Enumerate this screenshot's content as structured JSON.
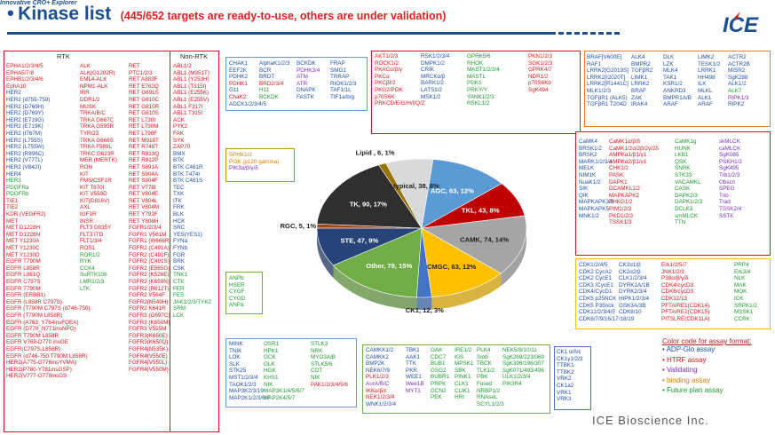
{
  "header": {
    "bullet": "•",
    "title": "Kinase list",
    "subtitle": "(445/652 targets are ready-to-use, others are under validation)"
  },
  "logo": {
    "letters": "ICE",
    "tagline": "Innovative CRO+ Explorer"
  },
  "footer": {
    "company": "ICE Bioscience Inc."
  },
  "legend": {
    "title": "Color code for assay format:",
    "items": [
      {
        "label": "ADP-Glo assay",
        "color": "#1f4fa8"
      },
      {
        "label": "HTRF assay",
        "color": "#e3141b"
      },
      {
        "label": "Validating",
        "color": "#7b2cbf"
      },
      {
        "label": "binding assay",
        "color": "#d17a00"
      },
      {
        "label": "Future plan assay",
        "color": "#199b2a"
      }
    ]
  },
  "colors": {
    "adp": "#1f4fa8",
    "htrf": "#e3141b",
    "validating": "#7b2cbf",
    "binding": "#d17a00",
    "future": "#199b2a",
    "brand": "#1b4f8f"
  },
  "rtk": {
    "header": "RTK",
    "col1": [
      "EPHA1/2/3/4/5",
      "EPHA5/7/8",
      "EPHB1/2/3/4/6",
      "EphA10",
      "HER2",
      "HER2 (d755-759)",
      "HER2 (D769H)",
      "HER2 (D769Y)",
      "HER2 (E719G)",
      "HER2 (E719K)",
      "HER2 (I767M)",
      "HER2 (L755S)",
      "HER2 (L755W)",
      "HER2 (R896C)",
      "HER2 (V777L)",
      "HER2 (V842I)",
      "HER4",
      "HER3",
      "PDGFRa",
      "PDGFRb",
      "TIE1",
      "TIE2",
      "KDR (VEGFR2)",
      "MET",
      "MET D1228H",
      "MET D1228N",
      "MET Y1230A",
      "MET Y1230C",
      "MET Y1230D",
      "EGFR T790M",
      "EGFR L858R",
      "EGFR L861Q",
      "EGFR C797S",
      "EGFR T790M",
      "EGFR (ERBB1)",
      "EGFR (L858R C797S)",
      "EGFR (T790M C797S (d746-750)",
      "EGFR (T790M L858R)",
      "EGFR (A763_Y764insFQEA)",
      "EGFR (D770_N771insNPG)",
      "EGFR T790M L858R",
      "EGFR V769-D770 insGE",
      "EGFR(C797S,L858R)",
      "EGFR (d746-750 T790M L858R)",
      "HER2(A775-G776insYVMA)",
      "HER2(P780-Y781insGSP)",
      "HER2(V777-G778insGS"
    ],
    "col2": [
      "ALK",
      "ALK(G1202R)",
      "EML4-ALK",
      "NPM1-ALK",
      "IRR",
      "DDR1/2",
      "MUSK",
      "TRKA/B/C",
      "TRKA G667C",
      "TRKA G595R",
      "TYRO3",
      "TRKA G666S",
      "TRKA F589L",
      "TRKC G623R",
      "MER (MERTK)",
      "RON",
      "KIT",
      "FMS/CSF1R",
      "KIT T670I",
      "KIT V559D",
      "KIT(D816V)",
      "AXL",
      "IGF1R",
      "INSR",
      "FLT3 D835Y",
      "FLT3 ITD",
      "FLT1/3/4",
      "ROS1",
      "ROR1/2",
      "RYK",
      "CCK4",
      "SuRTK106",
      "LMR1/2/3",
      "LTK"
    ],
    "col3": [
      "RET",
      "PTC1/2/3",
      "RET A883F",
      "RET E762Q",
      "RET G691S",
      "RET G810C",
      "RET G810R",
      "RET G810S",
      "RET L730I",
      "RET L790M",
      "RET L790F",
      "RET M918T",
      "RET R749T",
      "RET R813Q",
      "RET R912P",
      "RET S891A",
      "RET S904A",
      "RET S904F",
      "RET V778I",
      "RET V804E",
      "RET V804L",
      "RET V804M",
      "RET Y791F",
      "RET Y806H",
      "FGFR1/2/3/4",
      "FGFR1 V561M",
      "FGFR1 (W666R)",
      "FGFR2 (C491A)",
      "FGFR2 (C491F)",
      "FGFR2 (C491S)",
      "FGFR2 (E565G)",
      "FGFR2 (K526E)",
      "FGFR2 (K659N)",
      "FGFR2 (R612T)",
      "FGFR2 V564F",
      "FGFR2(N549H)",
      "FGFR2 K641R",
      "FGFR3 (G697C)",
      "FGFR3 (K650M)",
      "FGFR3 V555M",
      "FGFR3(K650E)",
      "FGFR3(K650Q)",
      "FGFR4(N535K)",
      "FGFR4(V550E)",
      "FGFR4(V550L)",
      "FGFR4(V550M)"
    ]
  },
  "nonrtk": {
    "header": "Non-RTK",
    "col1": [
      "ABL1/2",
      "ABL1 (M351T)",
      "ABL1 (Y253H)",
      "ABL1 (T315I)",
      "ABL1 (E255K)",
      "ABL1 (E255V)",
      "ABL1 F317I",
      "ABL1 T315I",
      "ACK",
      "PYK2",
      "FAK",
      "SYK",
      "ZAP70",
      "BMX",
      "BTK",
      "BTK C481R",
      "BTK T474I",
      "BTK C481S",
      "TEC",
      "TXK",
      "ITK",
      "FRK",
      "BLK",
      "HCK",
      "SRC",
      "YES(YES1)",
      "FYNa",
      "FYNb",
      "FGR",
      "BRK",
      "CSK",
      "TNK1",
      "CTK",
      "FER",
      "FES",
      "JAK1/2/3/TYK2",
      "SRM",
      "LCK"
    ]
  },
  "top_blue_box": {
    "col1": [
      "CHAK1",
      "EEF2K",
      "PDHK2",
      "PDHK1",
      "G11",
      "ChaK2",
      "ADCK1/2/3/4/5"
    ],
    "col2": [
      "AlphaK1/2/3",
      "BCR",
      "BRDT",
      "BRD2/3/4",
      "H11",
      "BCKDK",
      ""
    ],
    "col3": [
      "BCKDK",
      "PDHK3/4",
      "ATM",
      "ATR",
      "DNAPK",
      "FASTK",
      ""
    ],
    "col4": [
      "FRAP",
      "SMG1",
      "TRRAP",
      "RIOK1/2/3",
      "TAF1/1L",
      "TIF1a/b/g",
      ""
    ]
  },
  "atypical_box": {
    "col1": [
      "AKT1/2/3",
      "ROCK1/2",
      "PKACα/β/γ",
      "PKCα",
      "PKCβI/2",
      "PKG2/PGK",
      "p70S6K",
      "PRKCD/E/G/H/I/Q/Z"
    ],
    "col2": [
      "RSK1/2/3/4",
      "DMPK1/2",
      "CRIK",
      "MRCKα/β",
      "BARK1/2",
      "LATS1/2",
      "MSK1/2",
      ""
    ],
    "col3": [
      "GPRK5/6",
      "RHOK",
      "MAST1/2/3/4",
      "MASTL",
      "PDK1",
      "PRKY/Y",
      "YANK1/2/3",
      "RSKL1/2"
    ],
    "col4": [
      "PKN1/2/3",
      "SGK1/2/3",
      "GPRK4/7",
      "NDR1/2",
      "p70S6Kb",
      "SgK494",
      "",
      ""
    ]
  },
  "tkl_box": {
    "col1": [
      "BRAF[V600E]",
      "RAF1",
      "LRRK2[G2019S]",
      "LRRK2[I2020T]",
      "LRRK2[R1441C]",
      "MLK1/2/3",
      "TGFβR1 (ALK5)",
      "TGFβR1 T204D"
    ],
    "col2": [
      "ALK4",
      "BMPR2",
      "TGFβR2",
      "LIMK1",
      "LRRK2",
      "BRAF",
      "ZAK",
      "IRAK4"
    ],
    "col3": [
      "DLK",
      "LZK",
      "MLK4",
      "TAK1",
      "KSR1/2",
      "ANKRD3",
      "BMPR1A/B",
      "ARAF"
    ],
    "col4": [
      "LIMK2",
      "TESK1/2",
      "LRRK1",
      "HH498",
      "ILK",
      "MLKL",
      "ALK1",
      "ARAF"
    ],
    "col5": [
      "ACTR2",
      "ACTR2B",
      "MISR2",
      "SgK288",
      "ALK1/2",
      "ALK7",
      "RIPK1/3",
      "RIPK2"
    ]
  },
  "lipid_box": {
    "items": [
      "SPHK1/2",
      "PI3K (p120 gamma)",
      "PIK3α/β/γ/δ"
    ]
  },
  "camk_box": {
    "col1": [
      "CaMK4",
      "BRSK1/2",
      "BRSK2",
      "MARK1/2/3/4",
      "MELK",
      "NIM1K",
      "NuaK1/2",
      "SIK",
      "QIK",
      "MAPKAPK3/5",
      "MAPKAPK5",
      "MNK1/2"
    ],
    "col2": [
      "CaMK1α/β/δ",
      "CaMK1/2α/2β/2γ/2δ",
      "AMPKα1/β1/γ1",
      "AMPKα2/β1/γ1",
      "CHK1/2",
      "PASK",
      "DAPK1",
      "DCAMKL1/2",
      "MAPKAPK2",
      "PHKG1/2",
      "PIM1/2/3",
      "PKD1/2/3",
      "TSSK1/3"
    ],
    "col3": [
      "CaMK1g",
      "HUNK",
      "LKB1",
      "QSK",
      "SNRK",
      "STK33",
      "VACAMKL",
      "CASK",
      "DAPK2/3",
      "DAPK1/2/3",
      "DCLK3",
      "smMLCK",
      "TTN"
    ],
    "col4": [
      "skMLCK",
      "caMLCK",
      "SgK085",
      "PSKH1/2",
      "SgK495",
      "Trb1/2/3",
      "Obscn",
      "SPEG",
      "Trio",
      "Trad",
      "TSSK2/4",
      "SSTK"
    ]
  },
  "cmgc_box": {
    "col1": [
      "CDK1/2/4/5",
      "CDK2 CycA2",
      "CDK2 CycE1",
      "CDK3 /CycE1",
      "CDK4/CycD1",
      "CDK5 p25NCK",
      "CDK5 P35nck",
      "CDK11/2/3/4/5",
      "CDK6/7/9/16/17/18/19"
    ],
    "col2": [
      "CK2α1/β",
      "CK2α2/β",
      "CLK1/2/3/4",
      "DYRK1A/1B",
      "DYRK2/3/4",
      "HIPK1/2/3/4",
      "GSK3A/3B",
      "CDK8/10",
      ""
    ],
    "col3": [
      "Erk1/2/5/7",
      "JNK1/2/3",
      "P38α/β/γ/δ",
      "CDK4/cycD3",
      "CDK6/cycD3",
      "CDK12/13",
      "PFTAIRE1(CDK14)",
      "PFTAIRE2(CDK15)",
      "PITSLRE(CDK11A)"
    ],
    "col4": [
      "PRP4",
      "Erk3/4",
      "NLK",
      "MAK",
      "MOK",
      "ICK",
      "SRPK1/2",
      "MSSK1",
      "CCRK"
    ]
  },
  "ste_box": {
    "col1": [
      "MINK",
      "TNIK",
      "LOK",
      "SLK",
      "STK25",
      "MST1/2/3/4",
      "TAOK1/2/3",
      "MAP3K2/3/19",
      "MAP2K1/2/3/6/7"
    ],
    "col2": [
      "OSR1",
      "HPK1",
      "GCK",
      "GLK",
      "HGK",
      "KHS1",
      "NIK",
      "MAP3K1/4/5/6/7",
      "MAP2K4/5/7"
    ],
    "col3": [
      "STLK3",
      "NRK",
      "MYO3A/B",
      "STLK5/6",
      "COT",
      "NIK",
      "PAK1/2/3/4/5/6",
      "",
      ""
    ]
  },
  "rgc_box": {
    "items": [
      "ANPb",
      "HSER",
      "CYGF",
      "CYGD",
      "ANPa"
    ]
  },
  "other_box": {
    "col1": [
      "CAMKK1/2",
      "CAMKK2",
      "BMP2K",
      "NEK6/7/9",
      "PLK1/2/3",
      "AurA/B/C",
      "IKKα/β/ε",
      "NEK1/2/3/4",
      "WNK1/2/3/4"
    ],
    "col2": [
      "TBK1",
      "AAK1",
      "TTK",
      "PKR",
      "WEE1",
      "Wee1B",
      "MYT1",
      "",
      ""
    ],
    "col3": [
      "GAK",
      "CDC7",
      "BUB1",
      "GSG2",
      "BUBR1",
      "PRPK",
      "GCN2",
      "PEK",
      ""
    ],
    "col4": [
      "IRE1/2",
      "KIS",
      "MPSK1",
      "SBK",
      "PINK1",
      "CLK1",
      "CLIK1",
      "HRI",
      ""
    ],
    "col5": [
      "PLK4",
      "Slob",
      "TBCK",
      "TLK1/2",
      "PBK",
      "Fused",
      "NRBP1/2",
      "RNAseL",
      "SCYL1/2/3"
    ],
    "col6": [
      "NEK5/8/10/11",
      "SgK269/223/069",
      "SgK396/196/307",
      "SgK071/493/496",
      "ULK1/2/3/4",
      "PIK3R4",
      "",
      "",
      ""
    ]
  },
  "ck1_box": {
    "items": [
      "CK1 α/δ/ε",
      "CK1γ1/2/3",
      "TTBK1",
      "TTBK2",
      "VRK2",
      "CK1a2",
      "VRK1",
      "VRK3"
    ]
  },
  "chart_data": {
    "type": "pie",
    "title": "",
    "slices": [
      {
        "label": "Atypical",
        "count": 38,
        "percent": 8
      },
      {
        "label": "AGC",
        "count": 63,
        "percent": 12
      },
      {
        "label": "TKL",
        "count": 43,
        "percent": 8
      },
      {
        "label": "CAMK",
        "count": 74,
        "percent": 14
      },
      {
        "label": "CMGC",
        "count": 63,
        "percent": 12
      },
      {
        "label": "CK1",
        "count": 12,
        "percent": 3
      },
      {
        "label": "Other",
        "count": 79,
        "percent": 15
      },
      {
        "label": "STE",
        "count": 47,
        "percent": 9
      },
      {
        "label": "RGC",
        "count": 5,
        "percent": 1
      },
      {
        "label": "TK",
        "count": 90,
        "percent": 17
      },
      {
        "label": "Lipid",
        "count": 6,
        "percent": 1
      }
    ],
    "slice_colors": [
      "#d9d9d9",
      "#5b9bd5",
      "#c00000",
      "#a5a5a5",
      "#ffc000",
      "#4472c4",
      "#70ad47",
      "#264478",
      "#9e480e",
      "#2f2f2f",
      "#997300"
    ],
    "labels_text": [
      "Atypical, 38, 8%",
      "AGC, 63, 12%",
      "TKL, 43, 8%",
      "CAMK, 74, 14%",
      "CMGC, 63, 12%",
      "CK1, 12, 3%",
      "Other, 79, 15%",
      "STE, 47, 9%",
      "RGC, 5, 1%",
      "TK, 90, 17%",
      "Lipid , 6, 1%"
    ]
  }
}
